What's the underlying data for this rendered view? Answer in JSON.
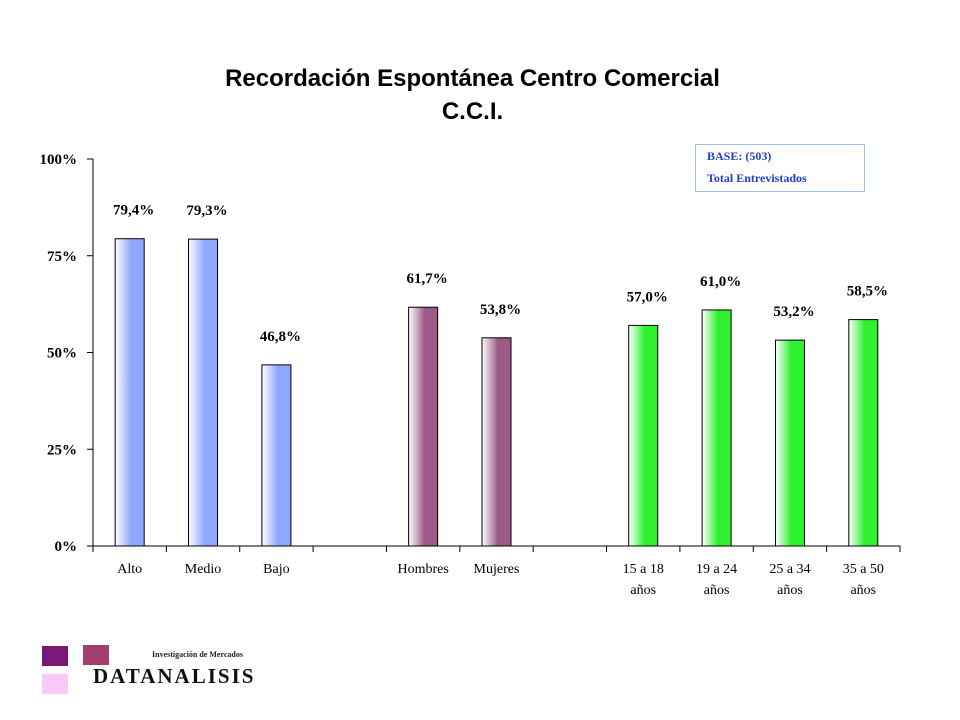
{
  "chart_data": {
    "type": "bar",
    "title": "Recordación Espontánea Centro Comercial",
    "subtitle": "C.C.I.",
    "categories": [
      {
        "label": "Alto",
        "label2": "",
        "value": 79.4,
        "value_label": "79,4%",
        "group": "nivel"
      },
      {
        "label": "Medio",
        "label2": "",
        "value": 79.3,
        "value_label": "79,3%",
        "group": "nivel"
      },
      {
        "label": "Bajo",
        "label2": "",
        "value": 46.8,
        "value_label": "46,8%",
        "group": "nivel"
      },
      {
        "label": "",
        "label2": "",
        "value": null,
        "value_label": "",
        "group": "gap"
      },
      {
        "label": "Hombres",
        "label2": "",
        "value": 61.7,
        "value_label": "61,7%",
        "group": "sexo"
      },
      {
        "label": "Mujeres",
        "label2": "",
        "value": 53.8,
        "value_label": "53,8%",
        "group": "sexo"
      },
      {
        "label": "",
        "label2": "",
        "value": null,
        "value_label": "",
        "group": "gap"
      },
      {
        "label": "15 a 18",
        "label2": "años",
        "value": 57.0,
        "value_label": "57,0%",
        "group": "edad"
      },
      {
        "label": "19 a 24",
        "label2": "años",
        "value": 61.0,
        "value_label": "61,0%",
        "group": "edad"
      },
      {
        "label": "25 a 34",
        "label2": "años",
        "value": 53.2,
        "value_label": "53,2%",
        "group": "edad"
      },
      {
        "label": "35 a 50",
        "label2": "años",
        "value": 58.5,
        "value_label": "58,5%",
        "group": "edad"
      }
    ],
    "ylim": [
      0,
      100
    ],
    "yticks": [
      "0%",
      "25%",
      "50%",
      "75%",
      "100%"
    ],
    "grid": false,
    "colors": {
      "nivel": "#8fa8ff",
      "sexo": "#9c5a86",
      "edad": "#2ef02e"
    }
  },
  "base_box": {
    "line1": "BASE:  (503)",
    "line2": "Total Entrevistados"
  },
  "logo": {
    "tagline": "Investigación de Mercados",
    "name": "DATANALISIS",
    "colors": [
      "#7a1a78",
      "#a03e6e",
      "#f8c8f8"
    ]
  }
}
